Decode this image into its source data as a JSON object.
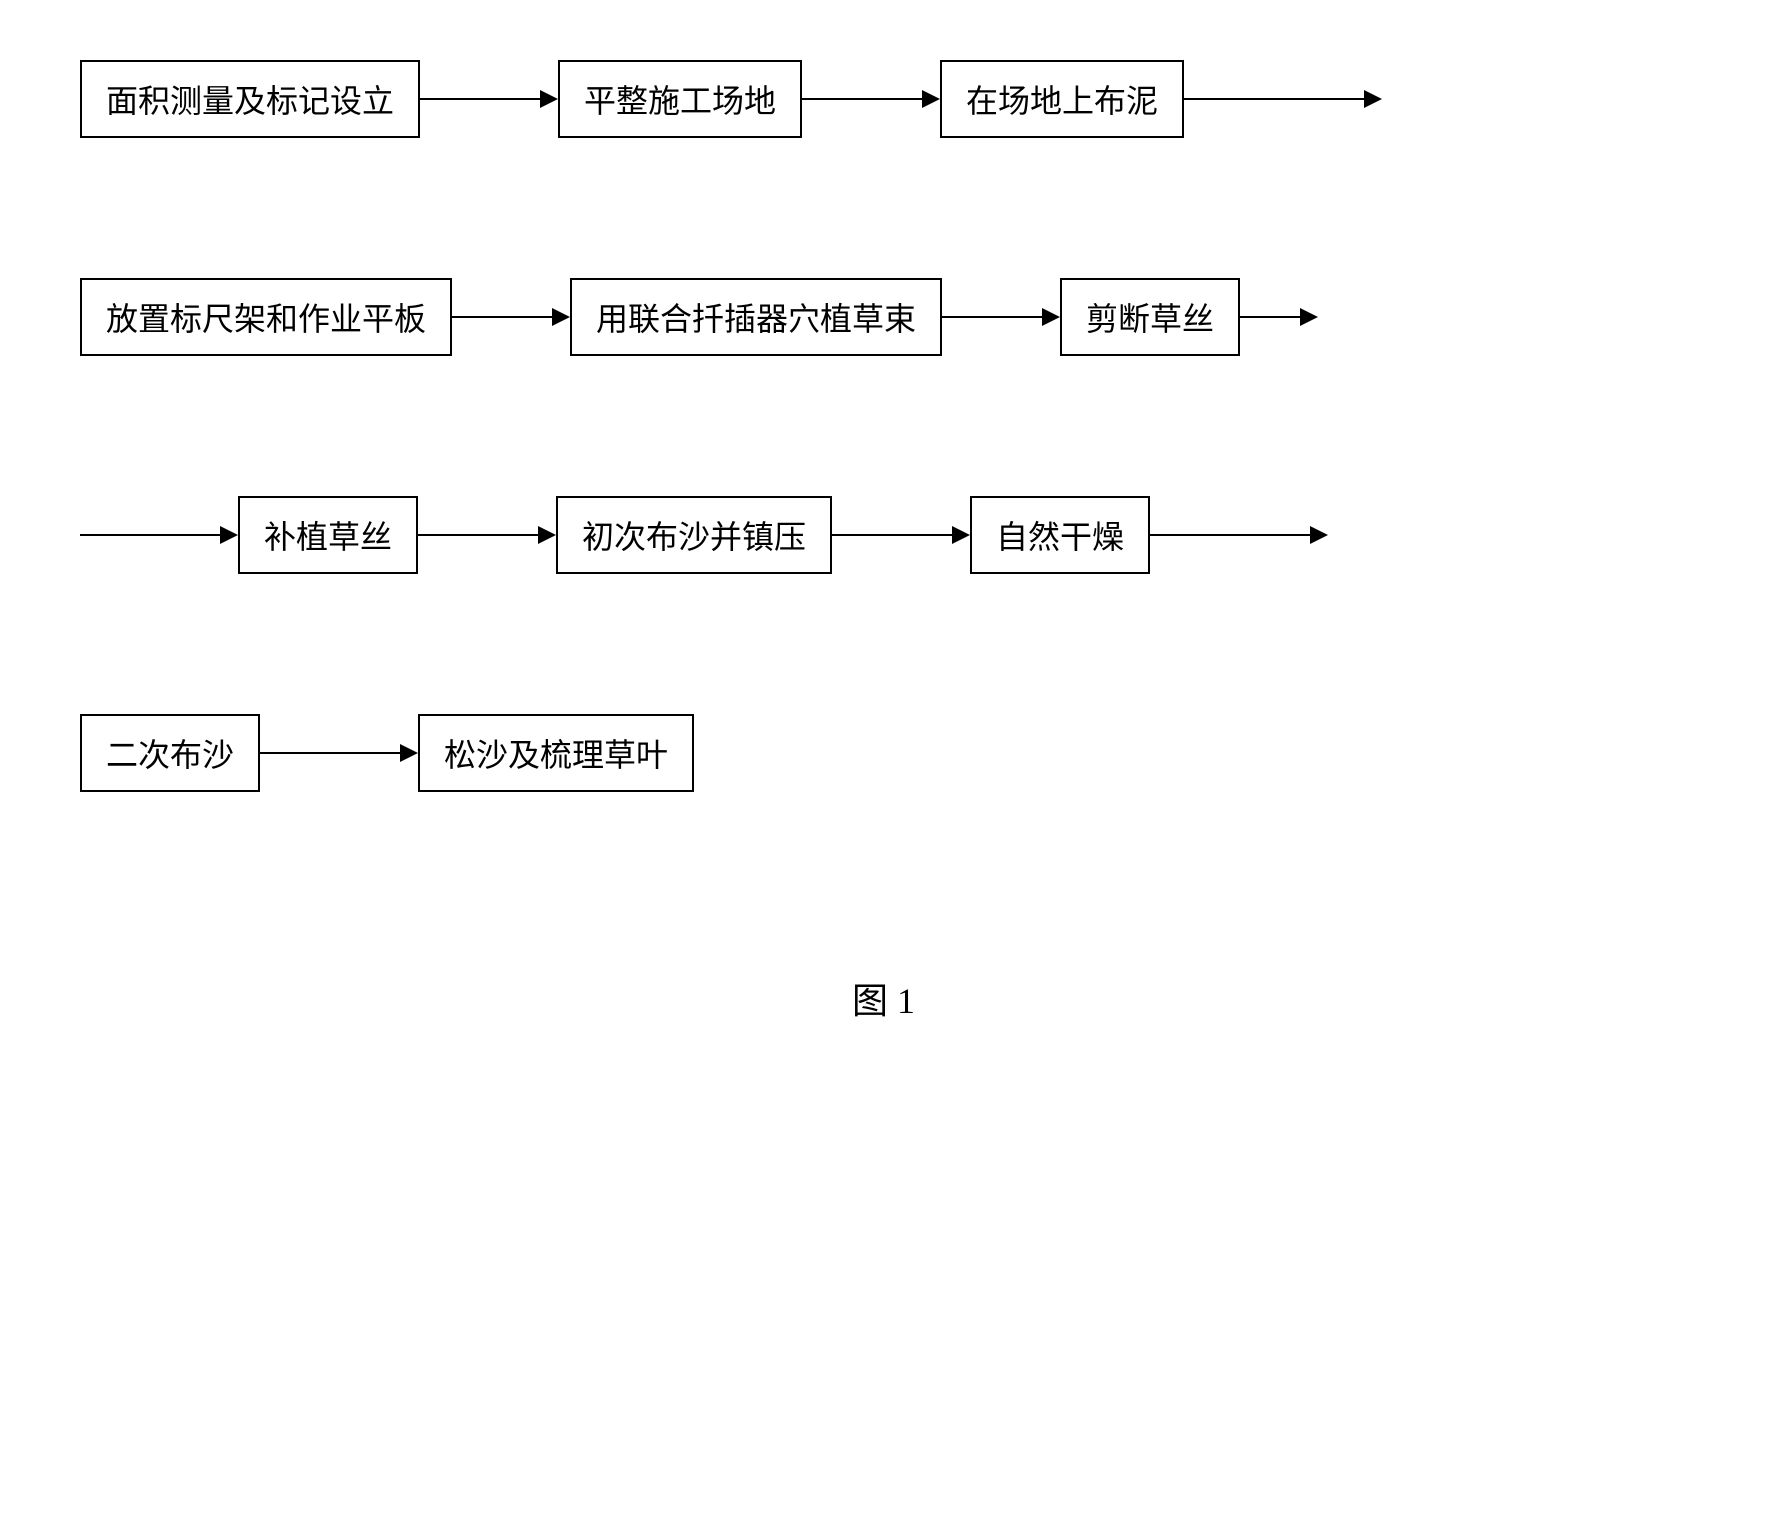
{
  "flowchart": {
    "type": "flowchart",
    "rows": [
      {
        "leading_arrow": false,
        "trailing_arrow": true,
        "boxes": [
          "面积测量及标记设立",
          "平整施工场地",
          "在场地上布泥"
        ],
        "arrow_widths": [
          120,
          120,
          180
        ]
      },
      {
        "leading_arrow": false,
        "trailing_arrow": true,
        "boxes": [
          "放置标尺架和作业平板",
          "用联合扦插器穴植草束",
          "剪断草丝"
        ],
        "arrow_widths": [
          100,
          100,
          60
        ]
      },
      {
        "leading_arrow": true,
        "trailing_arrow": true,
        "boxes": [
          "补植草丝",
          "初次布沙并镇压",
          "自然干燥"
        ],
        "leading_arrow_width": 140,
        "arrow_widths": [
          120,
          120,
          160
        ]
      },
      {
        "leading_arrow": false,
        "trailing_arrow": false,
        "boxes": [
          "二次布沙",
          "松沙及梳理草叶"
        ],
        "arrow_widths": [
          140
        ]
      }
    ],
    "box_border_color": "#000000",
    "box_border_width": 2,
    "box_padding_v": 14,
    "box_padding_h": 24,
    "box_fontsize": 32,
    "arrow_color": "#000000",
    "arrow_line_height": 2,
    "arrow_head_size": 18,
    "background_color": "#ffffff",
    "row_gap": 140
  },
  "caption": "图 1",
  "caption_fontsize": 36
}
